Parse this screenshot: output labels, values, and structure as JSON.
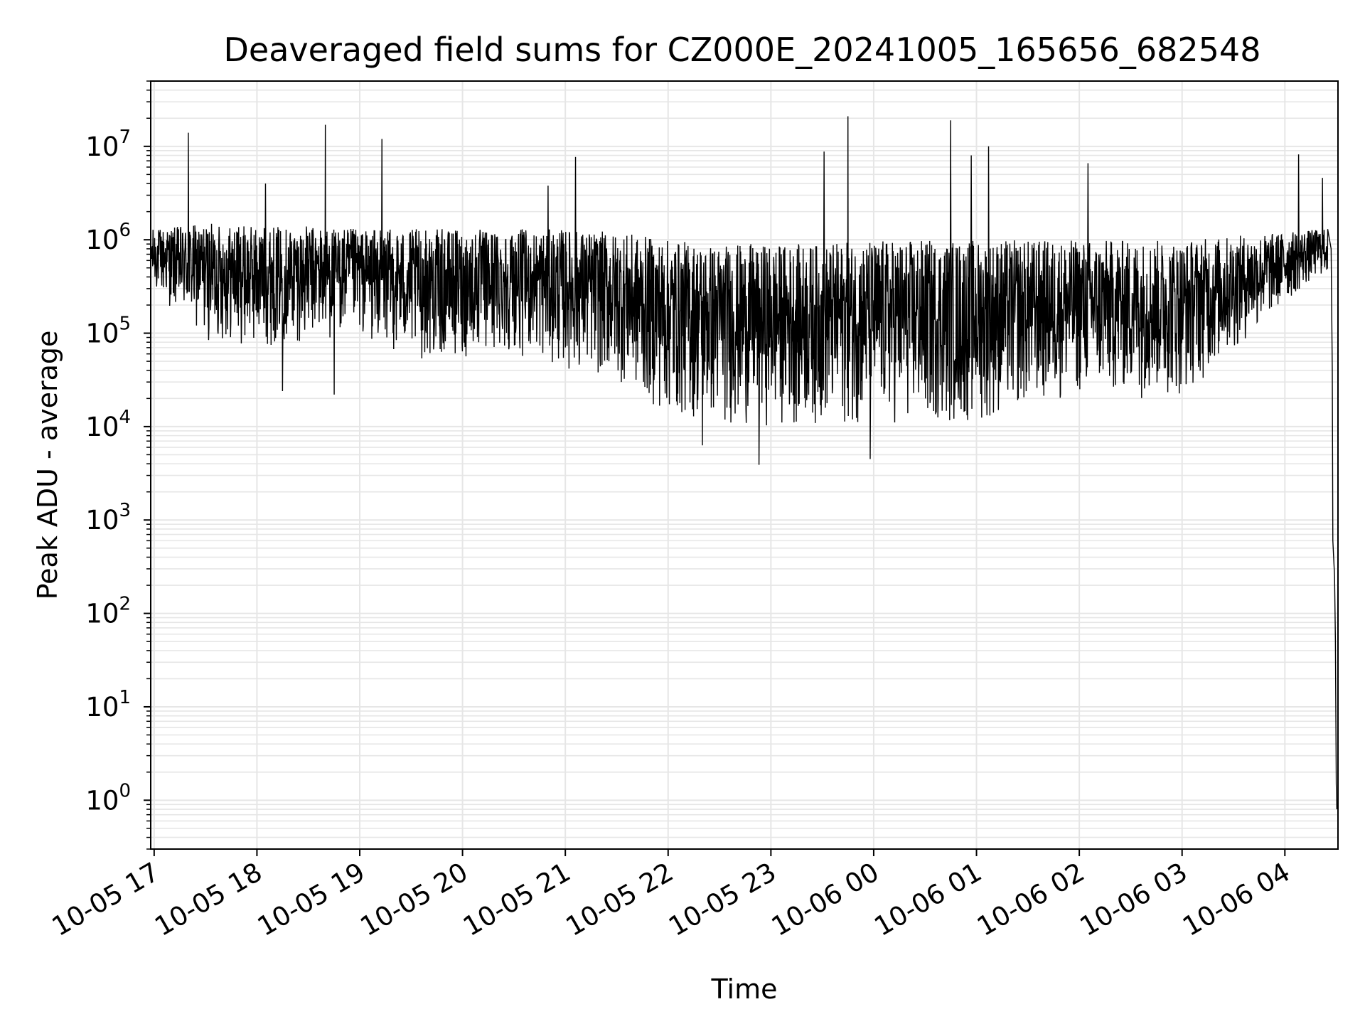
{
  "chart_data": {
    "type": "line",
    "title": "Deaveraged field sums for CZ000E_20241005_165656_682548",
    "xlabel": "Time",
    "ylabel": "Peak ADU - average",
    "yscale": "log",
    "ylim": [
      0.3,
      50000000
    ],
    "xlim": [
      "2024-10-05T16:58:00",
      "2024-10-06T04:31:00"
    ],
    "grid": true,
    "line_color": "#000000",
    "grid_color": "#e6e6e6",
    "x_ticks": [
      {
        "t": "2024-10-05T17:00:00",
        "label": "10-05 17"
      },
      {
        "t": "2024-10-05T18:00:00",
        "label": "10-05 18"
      },
      {
        "t": "2024-10-05T19:00:00",
        "label": "10-05 19"
      },
      {
        "t": "2024-10-05T20:00:00",
        "label": "10-05 20"
      },
      {
        "t": "2024-10-05T21:00:00",
        "label": "10-05 21"
      },
      {
        "t": "2024-10-05T22:00:00",
        "label": "10-05 22"
      },
      {
        "t": "2024-10-05T23:00:00",
        "label": "10-05 23"
      },
      {
        "t": "2024-10-06T00:00:00",
        "label": "10-06 00"
      },
      {
        "t": "2024-10-06T01:00:00",
        "label": "10-06 01"
      },
      {
        "t": "2024-10-06T02:00:00",
        "label": "10-06 02"
      },
      {
        "t": "2024-10-06T03:00:00",
        "label": "10-06 03"
      },
      {
        "t": "2024-10-06T04:00:00",
        "label": "10-06 04"
      }
    ],
    "y_ticks": [
      {
        "value": 1,
        "base": "10",
        "exp": "0"
      },
      {
        "value": 10,
        "base": "10",
        "exp": "1"
      },
      {
        "value": 100,
        "base": "10",
        "exp": "2"
      },
      {
        "value": 1000,
        "base": "10",
        "exp": "3"
      },
      {
        "value": 10000,
        "base": "10",
        "exp": "4"
      },
      {
        "value": 100000,
        "base": "10",
        "exp": "5"
      },
      {
        "value": 1000000,
        "base": "10",
        "exp": "6"
      },
      {
        "value": 10000000,
        "base": "10",
        "exp": "7"
      }
    ],
    "noise_envelope": [
      {
        "t": "2024-10-05T16:58:00",
        "lo": 300000,
        "hi": 1300000
      },
      {
        "t": "2024-10-05T17:30:00",
        "lo": 80000,
        "hi": 1500000
      },
      {
        "t": "2024-10-05T18:00:00",
        "lo": 70000,
        "hi": 1400000
      },
      {
        "t": "2024-10-05T18:30:00",
        "lo": 80000,
        "hi": 1400000
      },
      {
        "t": "2024-10-05T19:00:00",
        "lo": 90000,
        "hi": 1300000
      },
      {
        "t": "2024-10-05T19:30:00",
        "lo": 50000,
        "hi": 1300000
      },
      {
        "t": "2024-10-05T20:00:00",
        "lo": 50000,
        "hi": 1300000
      },
      {
        "t": "2024-10-05T20:30:00",
        "lo": 60000,
        "hi": 1300000
      },
      {
        "t": "2024-10-05T21:00:00",
        "lo": 40000,
        "hi": 1300000
      },
      {
        "t": "2024-10-05T21:30:00",
        "lo": 30000,
        "hi": 1200000
      },
      {
        "t": "2024-10-05T22:00:00",
        "lo": 12000,
        "hi": 1000000
      },
      {
        "t": "2024-10-05T22:30:00",
        "lo": 10000,
        "hi": 900000
      },
      {
        "t": "2024-10-05T23:00:00",
        "lo": 10000,
        "hi": 900000
      },
      {
        "t": "2024-10-05T23:30:00",
        "lo": 10000,
        "hi": 900000
      },
      {
        "t": "2024-10-06T00:00:00",
        "lo": 10000,
        "hi": 1000000
      },
      {
        "t": "2024-10-06T00:30:00",
        "lo": 10000,
        "hi": 1000000
      },
      {
        "t": "2024-10-06T01:00:00",
        "lo": 10000,
        "hi": 1000000
      },
      {
        "t": "2024-10-06T01:30:00",
        "lo": 15000,
        "hi": 1000000
      },
      {
        "t": "2024-10-06T02:00:00",
        "lo": 20000,
        "hi": 1000000
      },
      {
        "t": "2024-10-06T02:30:00",
        "lo": 20000,
        "hi": 1000000
      },
      {
        "t": "2024-10-06T03:00:00",
        "lo": 20000,
        "hi": 1000000
      },
      {
        "t": "2024-10-06T03:30:00",
        "lo": 60000,
        "hi": 1100000
      },
      {
        "t": "2024-10-06T04:00:00",
        "lo": 200000,
        "hi": 1200000
      },
      {
        "t": "2024-10-06T04:20:00",
        "lo": 400000,
        "hi": 1300000
      }
    ],
    "spikes": [
      {
        "t": "2024-10-05T17:20:00",
        "value": 14000000
      },
      {
        "t": "2024-10-05T18:05:00",
        "value": 4000000
      },
      {
        "t": "2024-10-05T18:40:00",
        "value": 17000000
      },
      {
        "t": "2024-10-05T19:13:00",
        "value": 12000000
      },
      {
        "t": "2024-10-05T20:50:00",
        "value": 3800000
      },
      {
        "t": "2024-10-05T21:06:00",
        "value": 7700000
      },
      {
        "t": "2024-10-05T23:31:00",
        "value": 8800000
      },
      {
        "t": "2024-10-05T23:45:00",
        "value": 21000000
      },
      {
        "t": "2024-10-06T00:45:00",
        "value": 19000000
      },
      {
        "t": "2024-10-06T00:57:00",
        "value": 8000000
      },
      {
        "t": "2024-10-06T01:07:00",
        "value": 10000000
      },
      {
        "t": "2024-10-06T02:05:00",
        "value": 6600000
      },
      {
        "t": "2024-10-06T04:08:00",
        "value": 8200000
      },
      {
        "t": "2024-10-06T04:22:00",
        "value": 4600000
      }
    ],
    "dips": [
      {
        "t": "2024-10-05T22:20:00",
        "value": 6300
      },
      {
        "t": "2024-10-05T22:53:00",
        "value": 3900
      },
      {
        "t": "2024-10-05T23:58:00",
        "value": 4500
      },
      {
        "t": "2024-10-05T18:15:00",
        "value": 24000
      },
      {
        "t": "2024-10-05T18:45:00",
        "value": 22000
      }
    ],
    "tail": [
      {
        "t": "2024-10-06T04:25:00",
        "value": 1300000
      },
      {
        "t": "2024-10-06T04:27:00",
        "value": 800000
      },
      {
        "t": "2024-10-06T04:27:40",
        "value": 40000
      },
      {
        "t": "2024-10-06T04:28:00",
        "value": 600
      },
      {
        "t": "2024-10-06T04:29:00",
        "value": 250
      },
      {
        "t": "2024-10-06T04:29:30",
        "value": 50
      },
      {
        "t": "2024-10-06T04:30:00",
        "value": 1.5
      },
      {
        "t": "2024-10-06T04:30:20",
        "value": 0.8
      }
    ]
  }
}
